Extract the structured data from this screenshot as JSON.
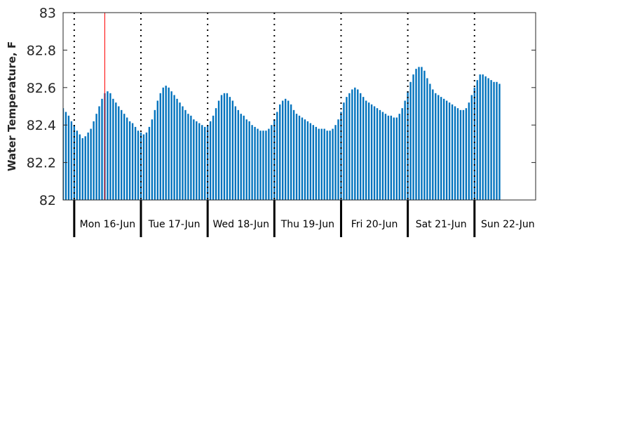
{
  "chart_data": {
    "type": "bar",
    "ylabel": "Water Temperature, F",
    "ylim": [
      82,
      83
    ],
    "yticks": [
      "82",
      "82.2",
      "82.4",
      "82.6",
      "82.8",
      "83"
    ],
    "days": [
      "Mon 16-Jun",
      "Tue 17-Jun",
      "Wed 18-Jun",
      "Thu 19-Jun",
      "Fri 20-Jun",
      "Sat 21-Jun",
      "Sun 22-Jun"
    ],
    "x_start": "2025-06-15T20:00",
    "x_end": "2025-06-22T22:00",
    "interval_hours": 1,
    "current_time": "2025-06-16T11:00",
    "bar_color": "#0072BD",
    "marker_color": "#FF0000",
    "values": [
      82.49,
      82.47,
      82.45,
      82.42,
      82.4,
      82.37,
      82.35,
      82.33,
      82.34,
      82.36,
      82.38,
      82.42,
      82.46,
      82.5,
      82.54,
      82.57,
      82.58,
      82.57,
      82.54,
      82.52,
      82.5,
      82.48,
      82.46,
      82.44,
      82.42,
      82.41,
      82.39,
      82.37,
      82.36,
      82.35,
      82.36,
      82.39,
      82.43,
      82.48,
      82.53,
      82.57,
      82.6,
      82.61,
      82.6,
      82.58,
      82.56,
      82.54,
      82.52,
      82.5,
      82.48,
      82.46,
      82.45,
      82.43,
      82.42,
      82.41,
      82.4,
      82.39,
      82.4,
      82.42,
      82.45,
      82.49,
      82.53,
      82.56,
      82.57,
      82.57,
      82.55,
      82.53,
      82.5,
      82.48,
      82.46,
      82.45,
      82.43,
      82.42,
      82.4,
      82.39,
      82.38,
      82.37,
      82.37,
      82.37,
      82.38,
      82.4,
      82.43,
      82.47,
      82.51,
      82.53,
      82.54,
      82.53,
      82.51,
      82.48,
      82.46,
      82.45,
      82.44,
      82.43,
      82.42,
      82.41,
      82.4,
      82.39,
      82.38,
      82.38,
      82.38,
      82.37,
      82.37,
      82.38,
      82.4,
      82.43,
      82.47,
      82.52,
      82.55,
      82.57,
      82.59,
      82.6,
      82.59,
      82.57,
      82.55,
      82.53,
      82.52,
      82.51,
      82.5,
      82.49,
      82.48,
      82.47,
      82.46,
      82.45,
      82.45,
      82.44,
      82.44,
      82.46,
      82.49,
      82.53,
      82.58,
      82.63,
      82.67,
      82.7,
      82.71,
      82.71,
      82.69,
      82.65,
      82.62,
      82.59,
      82.57,
      82.56,
      82.55,
      82.54,
      82.53,
      82.52,
      82.51,
      82.5,
      82.49,
      82.48,
      82.48,
      82.49,
      82.52,
      82.56,
      82.6,
      82.64,
      82.67,
      82.67,
      82.66,
      82.65,
      82.64,
      82.63,
      82.63,
      82.62
    ]
  }
}
